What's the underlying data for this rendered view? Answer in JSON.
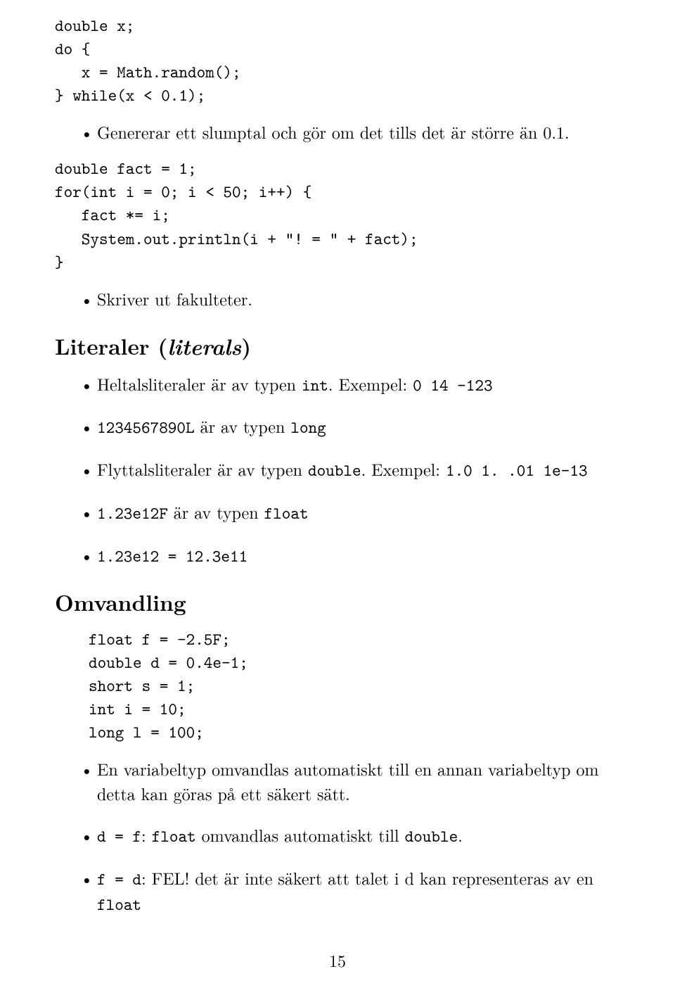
{
  "code1": {
    "l1": "double x;",
    "l2": "do {",
    "l3": "   x = Math.random();",
    "l4": "} while(x < 0.1);"
  },
  "bullet1": "Genererar ett slumptal och gör om det tills det är större än 0.1.",
  "code2": {
    "l1": "double fact = 1;",
    "l2": "for(int i = 0; i < 50; i++) {",
    "l3": "   fact *= i;",
    "l4": "   System.out.println(i + \"! = \" + fact);",
    "l5": "}"
  },
  "bullet2": "Skriver ut fakulteter.",
  "section1": {
    "title": "Literaler (",
    "ital": "literals",
    "close": ")"
  },
  "litBullets": {
    "b1a": "Heltalsliteraler är av typen ",
    "b1b": "int",
    "b1c": ". Exempel: ",
    "b1d": "0 14 -123",
    "b2a": "1234567890L",
    "b2b": " är av typen ",
    "b2c": "long",
    "b3a": "Flyttalsliteraler är av typen ",
    "b3b": "double",
    "b3c": ". Exempel: ",
    "b3d": "1.0 1. .01 1e-13",
    "b4a": "1.23e12F",
    "b4b": " är av typen ",
    "b4c": "float",
    "b5": "1.23e12 = 12.3e11"
  },
  "section2": "Omvandling",
  "code3": {
    "l1": "float f = -2.5F;",
    "l2": "double d = 0.4e-1;",
    "l3": "short s = 1;",
    "l4": "int i = 10;",
    "l5": "long l = 100;"
  },
  "omvBullets": {
    "b1": "En variabeltyp omvandlas automatiskt till en annan variabeltyp om detta kan göras på ett säkert sätt.",
    "b2a": "d = f",
    "b2b": ": ",
    "b2c": "float",
    "b2d": " omvandlas automatiskt till ",
    "b2e": "double",
    "b2f": ".",
    "b3a": "f = d",
    "b3b": ": FEL! det är inte säkert att talet i d kan representeras av en ",
    "b3c": "float"
  },
  "pageNumber": "15"
}
